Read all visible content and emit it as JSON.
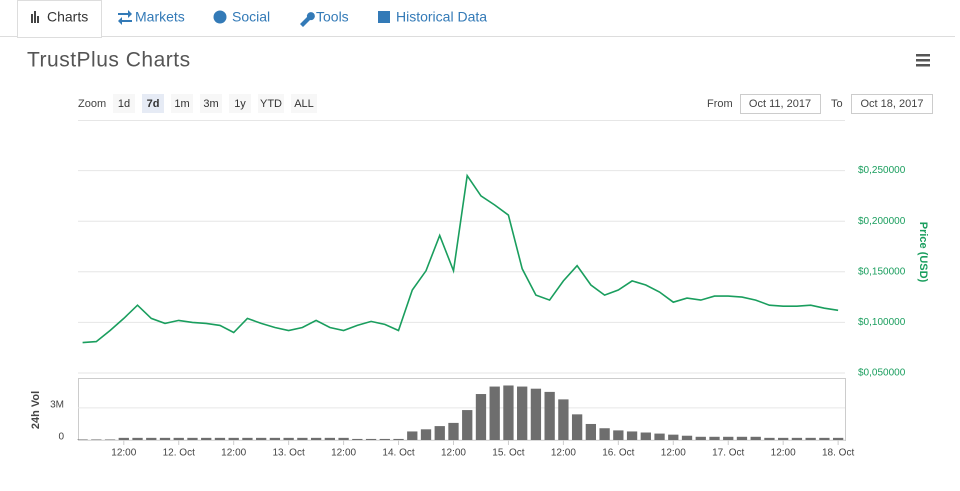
{
  "tabs": [
    "Charts",
    "Markets",
    "Social",
    "Tools",
    "Historical Data"
  ],
  "title": "TrustPlus Charts",
  "zoom": {
    "label": "Zoom",
    "buttons": [
      "1d",
      "7d",
      "1m",
      "3m",
      "1y",
      "YTD",
      "ALL"
    ],
    "active": 1
  },
  "range": {
    "from_label": "From",
    "from_value": "Oct 11, 2017",
    "to_label": "To",
    "to_value": "Oct 18, 2017"
  },
  "chart_data": [
    {
      "type": "line",
      "y_label": "Price (USD)",
      "x": [
        "2017-10-11T03:00",
        "2017-10-11T06:00",
        "2017-10-11T09:00",
        "2017-10-11T12:00",
        "2017-10-11T15:00",
        "2017-10-11T18:00",
        "2017-10-11T21:00",
        "2017-10-12T00:00",
        "2017-10-12T03:00",
        "2017-10-12T06:00",
        "2017-10-12T09:00",
        "2017-10-12T12:00",
        "2017-10-12T15:00",
        "2017-10-12T18:00",
        "2017-10-12T21:00",
        "2017-10-13T00:00",
        "2017-10-13T03:00",
        "2017-10-13T06:00",
        "2017-10-13T09:00",
        "2017-10-13T12:00",
        "2017-10-13T15:00",
        "2017-10-13T18:00",
        "2017-10-13T21:00",
        "2017-10-14T00:00",
        "2017-10-14T03:00",
        "2017-10-14T06:00",
        "2017-10-14T09:00",
        "2017-10-14T12:00",
        "2017-10-14T15:00",
        "2017-10-14T18:00",
        "2017-10-14T21:00",
        "2017-10-15T00:00",
        "2017-10-15T03:00",
        "2017-10-15T06:00",
        "2017-10-15T09:00",
        "2017-10-15T12:00",
        "2017-10-15T15:00",
        "2017-10-15T18:00",
        "2017-10-15T21:00",
        "2017-10-16T00:00",
        "2017-10-16T03:00",
        "2017-10-16T06:00",
        "2017-10-16T09:00",
        "2017-10-16T12:00",
        "2017-10-16T15:00",
        "2017-10-16T18:00",
        "2017-10-16T21:00",
        "2017-10-17T00:00",
        "2017-10-17T03:00",
        "2017-10-17T06:00",
        "2017-10-17T09:00",
        "2017-10-17T12:00",
        "2017-10-17T15:00",
        "2017-10-17T18:00",
        "2017-10-17T21:00",
        "2017-10-18T00:00"
      ],
      "series": [
        {
          "name": "Price",
          "color": "#1a9e5e",
          "values": [
            0.08,
            0.081,
            0.092,
            0.104,
            0.117,
            0.104,
            0.099,
            0.102,
            0.1,
            0.099,
            0.097,
            0.09,
            0.104,
            0.099,
            0.095,
            0.092,
            0.095,
            0.102,
            0.095,
            0.092,
            0.097,
            0.101,
            0.098,
            0.092,
            0.132,
            0.151,
            0.186,
            0.151,
            0.245,
            0.225,
            0.216,
            0.206,
            0.153,
            0.127,
            0.122,
            0.141,
            0.156,
            0.137,
            0.127,
            0.132,
            0.141,
            0.137,
            0.13,
            0.12,
            0.124,
            0.122,
            0.126,
            0.126,
            0.125,
            0.122,
            0.117,
            0.116,
            0.116,
            0.117,
            0.114,
            0.112
          ]
        }
      ],
      "xlim": [
        "2017-10-11T02:00",
        "2017-10-18T01:30"
      ],
      "ylim": [
        0.05,
        0.3
      ],
      "yticks": [
        {
          "value": 0.05,
          "label": "$0,050000"
        },
        {
          "value": 0.1,
          "label": "$0,100000"
        },
        {
          "value": 0.15,
          "label": "$0,150000"
        },
        {
          "value": 0.2,
          "label": "$0,200000"
        },
        {
          "value": 0.25,
          "label": "$0,250000"
        }
      ],
      "grid": true
    },
    {
      "type": "bar",
      "y_label": "24h Vol",
      "x": [
        "2017-10-11T03:00",
        "2017-10-11T06:00",
        "2017-10-11T09:00",
        "2017-10-11T12:00",
        "2017-10-11T15:00",
        "2017-10-11T18:00",
        "2017-10-11T21:00",
        "2017-10-12T00:00",
        "2017-10-12T03:00",
        "2017-10-12T06:00",
        "2017-10-12T09:00",
        "2017-10-12T12:00",
        "2017-10-12T15:00",
        "2017-10-12T18:00",
        "2017-10-12T21:00",
        "2017-10-13T00:00",
        "2017-10-13T03:00",
        "2017-10-13T06:00",
        "2017-10-13T09:00",
        "2017-10-13T12:00",
        "2017-10-13T15:00",
        "2017-10-13T18:00",
        "2017-10-13T21:00",
        "2017-10-14T00:00",
        "2017-10-14T03:00",
        "2017-10-14T06:00",
        "2017-10-14T09:00",
        "2017-10-14T12:00",
        "2017-10-14T15:00",
        "2017-10-14T18:00",
        "2017-10-14T21:00",
        "2017-10-15T00:00",
        "2017-10-15T03:00",
        "2017-10-15T06:00",
        "2017-10-15T09:00",
        "2017-10-15T12:00",
        "2017-10-15T15:00",
        "2017-10-15T18:00",
        "2017-10-15T21:00",
        "2017-10-16T00:00",
        "2017-10-16T03:00",
        "2017-10-16T06:00",
        "2017-10-16T09:00",
        "2017-10-16T12:00",
        "2017-10-16T15:00",
        "2017-10-16T18:00",
        "2017-10-16T21:00",
        "2017-10-17T00:00",
        "2017-10-17T03:00",
        "2017-10-17T06:00",
        "2017-10-17T09:00",
        "2017-10-17T12:00",
        "2017-10-17T15:00",
        "2017-10-17T18:00",
        "2017-10-17T21:00",
        "2017-10-18T00:00"
      ],
      "series": [
        {
          "name": "24h Vol",
          "color": "#6e6e6e",
          "values": [
            50000,
            50000,
            50000,
            200000,
            200000,
            200000,
            200000,
            200000,
            200000,
            200000,
            200000,
            200000,
            200000,
            200000,
            200000,
            200000,
            200000,
            200000,
            200000,
            200000,
            100000,
            100000,
            100000,
            100000,
            800000,
            1000000,
            1300000,
            1600000,
            2800000,
            4300000,
            5000000,
            5100000,
            5000000,
            4800000,
            4500000,
            3800000,
            2400000,
            1500000,
            1100000,
            900000,
            800000,
            700000,
            600000,
            500000,
            400000,
            300000,
            300000,
            300000,
            300000,
            300000,
            200000,
            200000,
            200000,
            200000,
            200000,
            200000
          ]
        }
      ],
      "xlim": [
        "2017-10-11T02:00",
        "2017-10-18T01:30"
      ],
      "ylim": [
        0,
        5800000
      ],
      "yticks": [
        0,
        {
          "value": 3000000,
          "label": "3M"
        }
      ],
      "xticks": [
        {
          "value": "2017-10-11T12:00",
          "label": "12:00"
        },
        {
          "value": "2017-10-12T00:00",
          "label": "12. Oct"
        },
        {
          "value": "2017-10-12T12:00",
          "label": "12:00"
        },
        {
          "value": "2017-10-13T00:00",
          "label": "13. Oct"
        },
        {
          "value": "2017-10-13T12:00",
          "label": "12:00"
        },
        {
          "value": "2017-10-14T00:00",
          "label": "14. Oct"
        },
        {
          "value": "2017-10-14T12:00",
          "label": "12:00"
        },
        {
          "value": "2017-10-15T00:00",
          "label": "15. Oct"
        },
        {
          "value": "2017-10-15T12:00",
          "label": "12:00"
        },
        {
          "value": "2017-10-16T00:00",
          "label": "16. Oct"
        },
        {
          "value": "2017-10-16T12:00",
          "label": "12:00"
        },
        {
          "value": "2017-10-17T00:00",
          "label": "17. Oct"
        },
        {
          "value": "2017-10-17T12:00",
          "label": "12:00"
        },
        {
          "value": "2017-10-18T00:00",
          "label": "18. Oct"
        }
      ],
      "grid": true
    }
  ]
}
